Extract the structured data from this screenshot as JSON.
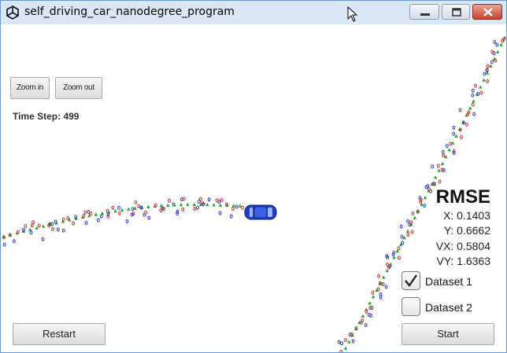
{
  "window": {
    "title": "self_driving_car_nanodegree_program"
  },
  "controls": {
    "zoom_in_label": "Zoom in",
    "zoom_out_label": "Zoom out",
    "restart_label": "Restart",
    "start_label": "Start"
  },
  "status": {
    "time_step": "Time Step: 499"
  },
  "rmse": {
    "title": "RMSE",
    "x": "X: 0.1403",
    "y": "Y: 0.6662",
    "vx": "VX: 0.5804",
    "vy": "VY: 1.6363"
  },
  "datasets": [
    {
      "label": "Dataset 1",
      "checked": true
    },
    {
      "label": "Dataset 2",
      "checked": false
    }
  ],
  "colors": {
    "estimate_marker": "#22aa22",
    "lidar_marker": "#cc2222",
    "radar_marker": "#2233cc",
    "car": "#1e3fc8"
  }
}
